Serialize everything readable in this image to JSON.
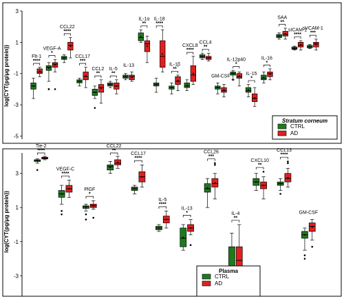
{
  "chart_data": [
    {
      "type": "boxplot",
      "ylabel": "log(CYT(pg/μg protein))",
      "ylim": [
        -5.2,
        3
      ],
      "yticks": [
        3,
        1,
        -1,
        -3,
        -5
      ],
      "legend": {
        "title": "Stratum corneum",
        "title_italic": true,
        "position": "bottom-right",
        "entries": [
          {
            "name": "CTRL",
            "color": "#1f7a1f"
          },
          {
            "name": "AD",
            "color": "#e02020"
          }
        ]
      },
      "groups": [
        {
          "name": "Flt-1",
          "sig": "****",
          "ctrl": {
            "min": -2.6,
            "q1": -2.0,
            "med": -1.8,
            "q3": -1.6,
            "max": -1.3,
            "out": []
          },
          "ad": {
            "min": -1.2,
            "q1": -1.0,
            "med": -0.9,
            "q3": -0.7,
            "max": -0.6,
            "out": []
          }
        },
        {
          "name": "VEGF-A",
          "sig": "*",
          "ctrl": {
            "min": -1.5,
            "q1": -0.8,
            "med": -0.6,
            "q3": -0.5,
            "max": -0.3,
            "out": [
              -2.0,
              -2.0
            ]
          },
          "ad": {
            "min": -0.9,
            "q1": -0.6,
            "med": -0.4,
            "q3": -0.3,
            "max": -0.1,
            "out": [
              -2.0
            ]
          }
        },
        {
          "name": "CCL22",
          "sig": "****",
          "ctrl": {
            "min": -0.3,
            "q1": -0.1,
            "med": 0.0,
            "q3": 0.1,
            "max": 0.2,
            "out": []
          },
          "ad": {
            "min": 0.0,
            "q1": 0.5,
            "med": 0.8,
            "q3": 1.0,
            "max": 1.3,
            "out": []
          }
        },
        {
          "name": "CCL17",
          "sig": "***",
          "ctrl": {
            "min": -1.8,
            "q1": -1.6,
            "med": -1.5,
            "q3": -1.4,
            "max": -1.3,
            "out": []
          },
          "ad": {
            "min": -1.9,
            "q1": -1.4,
            "med": -1.2,
            "q3": -0.9,
            "max": -0.6,
            "out": []
          }
        },
        {
          "name": "CCL2",
          "sig": "**",
          "ctrl": {
            "min": -2.6,
            "q1": -2.4,
            "med": -2.2,
            "q3": -2.0,
            "max": -1.8,
            "out": [
              -3.2
            ]
          },
          "ad": {
            "min": -2.9,
            "q1": -2.2,
            "med": -1.9,
            "q3": -1.7,
            "max": -1.4,
            "out": []
          }
        },
        {
          "name": "IL-5",
          "sig": "**",
          "ctrl": {
            "min": -1.9,
            "q1": -1.8,
            "med": -1.7,
            "q3": -1.6,
            "max": -1.5,
            "out": []
          },
          "ad": {
            "min": -2.3,
            "q1": -2.0,
            "med": -1.8,
            "q3": -1.6,
            "max": -1.4,
            "out": []
          }
        },
        {
          "name": "IL-13",
          "sig": "",
          "ctrl": {
            "min": -1.4,
            "q1": -1.3,
            "med": -1.2,
            "q3": -1.1,
            "max": -1.0,
            "out": []
          },
          "ad": {
            "min": -1.5,
            "q1": -1.4,
            "med": -1.2,
            "q3": -1.1,
            "max": -0.9,
            "out": []
          }
        },
        {
          "name": "IL-1α",
          "sig": "**",
          "ctrl": {
            "min": 1.0,
            "q1": 1.1,
            "med": 1.3,
            "q3": 1.6,
            "max": 1.8,
            "out": []
          },
          "ad": {
            "min": -0.3,
            "q1": 0.4,
            "med": 0.9,
            "q3": 1.1,
            "max": 1.4,
            "out": []
          }
        },
        {
          "name": "IL-18",
          "sig": "****",
          "ctrl": {
            "min": -2.2,
            "q1": -1.8,
            "med": -1.7,
            "q3": -1.6,
            "max": -1.3,
            "out": []
          },
          "ad": {
            "min": -0.9,
            "q1": -0.6,
            "med": 0.1,
            "q3": 1.1,
            "max": 1.8,
            "out": []
          }
        },
        {
          "name": "IL-1β",
          "sig": "**",
          "ctrl": {
            "min": -2.3,
            "q1": -2.0,
            "med": -1.9,
            "q3": -1.8,
            "max": -1.6,
            "out": []
          },
          "ad": {
            "min": -2.1,
            "q1": -1.7,
            "med": -1.5,
            "q3": -1.2,
            "max": -1.1,
            "out": []
          }
        },
        {
          "name": "CXCL8",
          "sig": "****",
          "ctrl": {
            "min": -2.1,
            "q1": -1.9,
            "med": -1.8,
            "q3": -1.6,
            "max": -1.4,
            "out": []
          },
          "ad": {
            "min": -1.7,
            "q1": -1.5,
            "med": -1.1,
            "q3": -0.5,
            "max": 0.1,
            "out": []
          }
        },
        {
          "name": "CCL4",
          "sig": "**",
          "ctrl": {
            "min": -0.1,
            "q1": 0.0,
            "med": 0.1,
            "q3": 0.2,
            "max": 0.3,
            "out": []
          },
          "ad": {
            "min": -0.2,
            "q1": -0.1,
            "med": 0.0,
            "q3": 0.1,
            "max": 0.3,
            "out": []
          }
        },
        {
          "name": "GM-CSF",
          "sig": "",
          "ctrl": {
            "min": -2.3,
            "q1": -2.0,
            "med": -1.9,
            "q3": -1.8,
            "max": -1.6,
            "out": []
          },
          "ad": {
            "min": -2.5,
            "q1": -2.2,
            "med": -2.1,
            "q3": -1.9,
            "max": -1.7,
            "out": []
          }
        },
        {
          "name": "IL-12p40",
          "sig": "*",
          "ctrl": {
            "min": -1.4,
            "q1": -1.1,
            "med": -1.0,
            "q3": -0.9,
            "max": -0.8,
            "out": [
              -1.4
            ]
          },
          "ad": {
            "min": -1.8,
            "q1": -1.3,
            "med": -1.2,
            "q3": -1.0,
            "max": -0.9,
            "out": []
          }
        },
        {
          "name": "IL-15",
          "sig": "*",
          "ctrl": {
            "min": -2.5,
            "q1": -2.2,
            "med": -2.1,
            "q3": -1.9,
            "max": -1.7,
            "out": []
          },
          "ad": {
            "min": -3.1,
            "q1": -2.8,
            "med": -2.6,
            "q3": -2.3,
            "max": -1.9,
            "out": []
          }
        },
        {
          "name": "IL-16",
          "sig": "*",
          "ctrl": {
            "min": -1.6,
            "q1": -1.4,
            "med": -1.3,
            "q3": -1.1,
            "max": -0.9,
            "out": []
          },
          "ad": {
            "min": -1.4,
            "q1": -1.2,
            "med": -1.0,
            "q3": -0.9,
            "max": -0.7,
            "out": []
          }
        },
        {
          "name": "SAA",
          "sig": "**",
          "ctrl": {
            "min": 1.2,
            "q1": 1.3,
            "med": 1.4,
            "q3": 1.5,
            "max": 1.6,
            "out": []
          },
          "ad": {
            "min": 1.2,
            "q1": 1.4,
            "med": 1.5,
            "q3": 1.7,
            "max": 1.9,
            "out": []
          }
        },
        {
          "name": "sICAM-1",
          "sig": "****",
          "ctrl": {
            "min": 0.5,
            "q1": 0.55,
            "med": 0.6,
            "q3": 0.7,
            "max": 0.75,
            "out": []
          },
          "ad": {
            "min": 0.5,
            "q1": 0.7,
            "med": 0.8,
            "q3": 1.0,
            "max": 1.1,
            "out": []
          }
        },
        {
          "name": "sVCAM-1",
          "sig": "***",
          "ctrl": {
            "min": 0.6,
            "q1": 0.65,
            "med": 0.7,
            "q3": 0.8,
            "max": 0.85,
            "out": []
          },
          "ad": {
            "min": 0.5,
            "q1": 0.7,
            "med": 0.9,
            "q3": 1.0,
            "max": 1.2,
            "out": []
          }
        }
      ]
    },
    {
      "type": "boxplot",
      "ylabel": "log(CYT(pg/μg protein))",
      "ylim": [
        -4.2,
        4.2
      ],
      "yticks": [
        3,
        1,
        -1,
        -3
      ],
      "legend": {
        "title": "Plasma",
        "title_italic": false,
        "position": "bottom-right",
        "entries": [
          {
            "name": "CTRL",
            "color": "#1f7a1f"
          },
          {
            "name": "AD",
            "color": "#e02020"
          }
        ]
      },
      "groups": [
        {
          "name": "Tie-2",
          "sig": "****",
          "ctrl": {
            "min": 3.6,
            "q1": 3.7,
            "med": 3.75,
            "q3": 3.8,
            "max": 3.85,
            "out": [
              3.2
            ]
          },
          "ad": {
            "min": 3.8,
            "q1": 3.85,
            "med": 3.9,
            "q3": 3.95,
            "max": 4.0,
            "out": []
          }
        },
        {
          "name": "VEGF-C",
          "sig": "****",
          "ctrl": {
            "min": 1.2,
            "q1": 1.6,
            "med": 1.8,
            "q3": 2.0,
            "max": 2.3,
            "out": [
              0.8,
              0.6
            ]
          },
          "ad": {
            "min": 1.6,
            "q1": 1.9,
            "med": 2.1,
            "q3": 2.3,
            "max": 2.6,
            "out": []
          }
        },
        {
          "name": "PlGF",
          "sig": "*",
          "ctrl": {
            "min": 0.8,
            "q1": 0.95,
            "med": 1.05,
            "q3": 1.1,
            "max": 1.2,
            "out": [
              0.6,
              0.3
            ]
          },
          "ad": {
            "min": 0.9,
            "q1": 1.0,
            "med": 1.1,
            "q3": 1.2,
            "max": 1.4,
            "out": [
              0.4
            ]
          }
        },
        {
          "name": "CCL22",
          "sig": "**",
          "ctrl": {
            "min": 3.0,
            "q1": 3.2,
            "med": 3.4,
            "q3": 3.5,
            "max": 3.7,
            "out": []
          },
          "ad": {
            "min": 3.3,
            "q1": 3.5,
            "med": 3.6,
            "q3": 3.8,
            "max": 4.0,
            "out": []
          }
        },
        {
          "name": "CCL17",
          "sig": "****",
          "ctrl": {
            "min": 1.8,
            "q1": 2.0,
            "med": 2.1,
            "q3": 2.2,
            "max": 2.3,
            "out": []
          },
          "ad": {
            "min": 2.2,
            "q1": 2.5,
            "med": 2.8,
            "q3": 3.1,
            "max": 3.5,
            "out": []
          }
        },
        {
          "name": "IL-5",
          "sig": "****",
          "ctrl": {
            "min": -0.4,
            "q1": -0.3,
            "med": -0.2,
            "q3": -0.1,
            "max": 0.0,
            "out": []
          },
          "ad": {
            "min": -0.2,
            "q1": 0.1,
            "med": 0.3,
            "q3": 0.5,
            "max": 0.8,
            "out": []
          }
        },
        {
          "name": "IL-13",
          "sig": "*",
          "ctrl": {
            "min": -1.5,
            "q1": -1.3,
            "med": -0.8,
            "q3": -0.2,
            "max": 0.0,
            "out": []
          },
          "ad": {
            "min": -0.6,
            "q1": -0.4,
            "med": -0.2,
            "q3": 0.0,
            "max": 0.3,
            "out": [
              -1.2
            ]
          }
        },
        {
          "name": "CCL26",
          "sig": "***",
          "ctrl": {
            "min": 1.0,
            "q1": 1.9,
            "med": 2.1,
            "q3": 2.4,
            "max": 2.7,
            "out": []
          },
          "ad": {
            "min": 1.5,
            "q1": 2.2,
            "med": 2.4,
            "q3": 2.7,
            "max": 3.0,
            "out": [
              3.5,
              3.6
            ]
          }
        },
        {
          "name": "IL-4",
          "sig": "**",
          "ctrl": {
            "min": -4.2,
            "q1": -4.2,
            "med": -4.2,
            "q3": -1.3,
            "max": -0.5,
            "out": []
          },
          "ad": {
            "min": -4.2,
            "q1": -4.2,
            "med": -2.1,
            "q3": -1.3,
            "max": 0.0,
            "out": []
          }
        },
        {
          "name": "CXCL10",
          "sig": "**",
          "ctrl": {
            "min": 2.0,
            "q1": 2.3,
            "med": 2.5,
            "q3": 2.7,
            "max": 3.0,
            "out": []
          },
          "ad": {
            "min": 1.5,
            "q1": 2.1,
            "med": 2.3,
            "q3": 2.5,
            "max": 2.8,
            "out": [
              3.1
            ]
          }
        },
        {
          "name": "CCL13",
          "sig": "****",
          "ctrl": {
            "min": 2.0,
            "q1": 2.3,
            "med": 2.4,
            "q3": 2.5,
            "max": 2.7,
            "out": [
              1.8
            ]
          },
          "ad": {
            "min": 2.2,
            "q1": 2.5,
            "med": 2.7,
            "q3": 3.0,
            "max": 3.3,
            "out": [
              3.6,
              3.7
            ]
          }
        },
        {
          "name": "GM-CSF",
          "sig": "",
          "ctrl": {
            "min": -1.5,
            "q1": -0.8,
            "med": -0.6,
            "q3": -0.4,
            "max": -0.2,
            "out": [
              -1.8,
              -2.0
            ]
          },
          "ad": {
            "min": -0.9,
            "q1": -0.4,
            "med": -0.1,
            "q3": 0.1,
            "max": 0.3,
            "out": [
              -1.3
            ]
          }
        }
      ]
    }
  ]
}
